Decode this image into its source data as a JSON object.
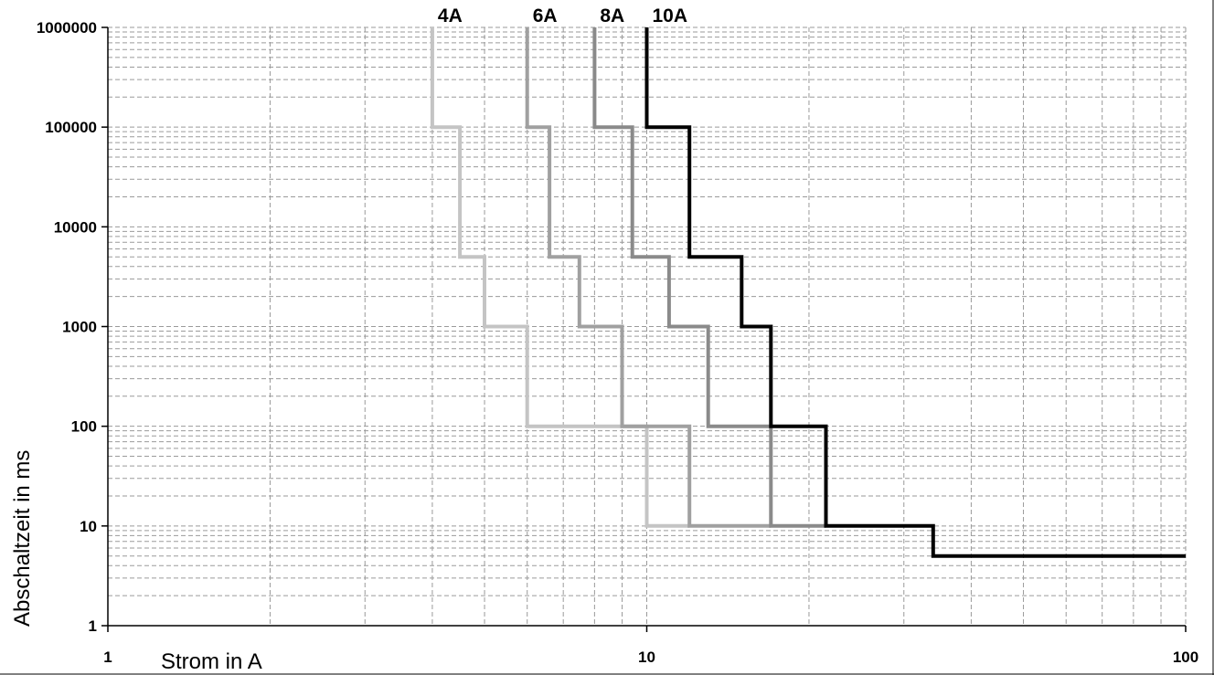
{
  "chart_data": {
    "type": "line",
    "x_scale": "log",
    "y_scale": "log",
    "xlim": [
      1,
      100
    ],
    "ylim": [
      1,
      1000000
    ],
    "grid": true,
    "xlabel": "Strom in A",
    "ylabel": "Abschaltzeit in ms",
    "x_ticks": [
      "1",
      "10",
      "100"
    ],
    "y_ticks": [
      "1",
      "10",
      "100",
      "1000",
      "10000",
      "100000",
      "1000000"
    ],
    "series": [
      {
        "name": "4A",
        "color": "#c4c4c4",
        "points": [
          [
            4,
            1000000
          ],
          [
            4,
            100000
          ],
          [
            4.5,
            100000
          ],
          [
            4.5,
            5000
          ],
          [
            5,
            5000
          ],
          [
            5,
            1000
          ],
          [
            6,
            1000
          ],
          [
            6,
            100
          ],
          [
            10,
            100
          ],
          [
            10,
            10
          ],
          [
            12,
            10
          ]
        ]
      },
      {
        "name": "6A",
        "color": "#a0a0a0",
        "points": [
          [
            6,
            1000000
          ],
          [
            6,
            100000
          ],
          [
            6.6,
            100000
          ],
          [
            6.6,
            5000
          ],
          [
            7.5,
            5000
          ],
          [
            7.5,
            1000
          ],
          [
            9,
            1000
          ],
          [
            9,
            100
          ],
          [
            12,
            100
          ],
          [
            12,
            10
          ],
          [
            17,
            10
          ]
        ]
      },
      {
        "name": "8A",
        "color": "#8a8a8a",
        "points": [
          [
            8,
            1000000
          ],
          [
            8,
            100000
          ],
          [
            9.4,
            100000
          ],
          [
            9.4,
            5000
          ],
          [
            11,
            5000
          ],
          [
            11,
            1000
          ],
          [
            13,
            1000
          ],
          [
            13,
            100
          ],
          [
            17,
            100
          ],
          [
            17,
            10
          ],
          [
            21.5,
            10
          ]
        ]
      },
      {
        "name": "10A",
        "color": "#000000",
        "points": [
          [
            10,
            1000000
          ],
          [
            10,
            100000
          ],
          [
            12,
            100000
          ],
          [
            12,
            5000
          ],
          [
            15,
            5000
          ],
          [
            15,
            1000
          ],
          [
            17,
            1000
          ],
          [
            17,
            100
          ],
          [
            21.5,
            100
          ],
          [
            21.5,
            10
          ],
          [
            34,
            10
          ],
          [
            34,
            5
          ],
          [
            100,
            5
          ]
        ]
      }
    ]
  }
}
